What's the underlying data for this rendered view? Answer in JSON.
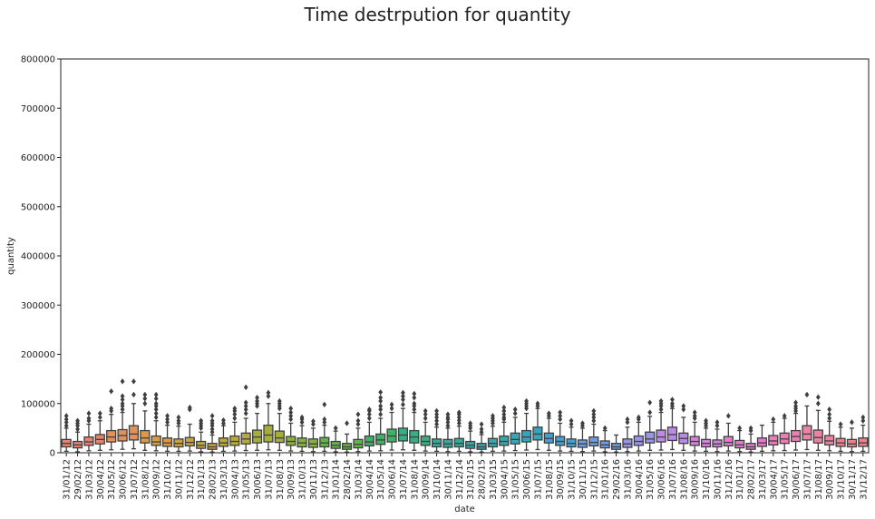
{
  "chart_data": {
    "type": "boxplot",
    "title": "Time destrpution for quantity",
    "xlabel": "date",
    "ylabel": "quantity",
    "ylim": [
      0,
      800000
    ],
    "yticks": [
      0,
      100000,
      200000,
      300000,
      400000,
      500000,
      600000,
      700000,
      800000
    ],
    "grid": false,
    "legend": "none",
    "categories": [
      "31/01/12",
      "29/02/12",
      "31/03/12",
      "30/04/12",
      "31/05/12",
      "30/06/12",
      "31/07/12",
      "31/08/12",
      "30/09/12",
      "31/10/12",
      "30/11/12",
      "31/12/12",
      "31/01/13",
      "28/02/13",
      "31/03/13",
      "30/04/13",
      "31/05/13",
      "30/06/13",
      "31/07/13",
      "31/08/13",
      "30/09/13",
      "31/10/13",
      "30/11/13",
      "31/12/13",
      "31/01/14",
      "28/02/14",
      "31/03/14",
      "30/04/14",
      "31/05/14",
      "30/06/14",
      "31/07/14",
      "31/08/14",
      "30/09/14",
      "31/10/14",
      "30/11/14",
      "31/12/14",
      "31/01/15",
      "28/02/15",
      "31/03/15",
      "30/04/15",
      "31/05/15",
      "30/06/15",
      "31/07/15",
      "31/08/15",
      "30/09/15",
      "31/10/15",
      "30/11/15",
      "31/12/15",
      "31/01/16",
      "29/02/16",
      "31/03/16",
      "30/04/16",
      "31/05/16",
      "30/06/16",
      "31/07/16",
      "31/08/16",
      "30/09/16",
      "31/10/16",
      "30/11/16",
      "31/12/16",
      "31/01/17",
      "28/02/17",
      "31/03/17",
      "30/04/17",
      "31/05/17",
      "30/06/17",
      "31/07/17",
      "31/08/17",
      "30/09/17",
      "31/10/17",
      "30/11/17",
      "31/12/17"
    ],
    "boxes": [
      {
        "q1": 12000,
        "median": 19000,
        "q3": 27000,
        "whisker_low": 3000,
        "whisker_high": 50000,
        "outliers": [
          55000,
          62000,
          68000,
          75000
        ]
      },
      {
        "q1": 10000,
        "median": 16000,
        "q3": 23000,
        "whisker_low": 2000,
        "whisker_high": 42000,
        "outliers": [
          48000,
          55000,
          60000,
          65000
        ]
      },
      {
        "q1": 15000,
        "median": 22000,
        "q3": 32000,
        "whisker_low": 4000,
        "whisker_high": 58000,
        "outliers": [
          65000,
          70000,
          80000
        ]
      },
      {
        "q1": 18000,
        "median": 27000,
        "q3": 37000,
        "whisker_low": 5000,
        "whisker_high": 65000,
        "outliers": [
          72000,
          80000
        ]
      },
      {
        "q1": 22000,
        "median": 32000,
        "q3": 45000,
        "whisker_low": 6000,
        "whisker_high": 78000,
        "outliers": [
          85000,
          90000,
          125000
        ]
      },
      {
        "q1": 24000,
        "median": 35000,
        "q3": 47000,
        "whisker_low": 7000,
        "whisker_high": 82000,
        "outliers": [
          88000,
          95000,
          100000,
          108000,
          115000,
          145000
        ]
      },
      {
        "q1": 26000,
        "median": 38000,
        "q3": 55000,
        "whisker_low": 8000,
        "whisker_high": 100000,
        "outliers": [
          118000,
          145000
        ]
      },
      {
        "q1": 20000,
        "median": 30000,
        "q3": 45000,
        "whisker_low": 5000,
        "whisker_high": 85000,
        "outliers": [
          100000,
          110000,
          118000
        ]
      },
      {
        "q1": 15000,
        "median": 22000,
        "q3": 34000,
        "whisker_low": 4000,
        "whisker_high": 65000,
        "outliers": [
          72000,
          80000,
          88000,
          95000,
          100000,
          110000,
          118000
        ]
      },
      {
        "q1": 13000,
        "median": 20000,
        "q3": 30000,
        "whisker_low": 3000,
        "whisker_high": 56000,
        "outliers": [
          62000,
          68000,
          75000
        ]
      },
      {
        "q1": 12000,
        "median": 19000,
        "q3": 28000,
        "whisker_low": 3000,
        "whisker_high": 54000,
        "outliers": [
          60000,
          65000,
          72000
        ]
      },
      {
        "q1": 14000,
        "median": 21000,
        "q3": 31000,
        "whisker_low": 3500,
        "whisker_high": 58000,
        "outliers": [
          88000,
          92000
        ]
      },
      {
        "q1": 9000,
        "median": 15000,
        "q3": 23000,
        "whisker_low": 2000,
        "whisker_high": 42000,
        "outliers": [
          50000,
          55000,
          60000,
          65000
        ]
      },
      {
        "q1": 7000,
        "median": 12000,
        "q3": 19000,
        "whisker_low": 1500,
        "whisker_high": 36000,
        "outliers": [
          42000,
          48000,
          55000,
          60000,
          65000,
          75000
        ]
      },
      {
        "q1": 13000,
        "median": 20000,
        "q3": 30000,
        "whisker_low": 3000,
        "whisker_high": 55000,
        "outliers": [
          60000,
          66000
        ]
      },
      {
        "q1": 15000,
        "median": 23000,
        "q3": 34000,
        "whisker_low": 3500,
        "whisker_high": 62000,
        "outliers": [
          70000,
          78000,
          85000,
          90000
        ]
      },
      {
        "q1": 18000,
        "median": 28000,
        "q3": 40000,
        "whisker_low": 4500,
        "whisker_high": 70000,
        "outliers": [
          80000,
          88000,
          95000,
          102000,
          133000
        ]
      },
      {
        "q1": 20000,
        "median": 32000,
        "q3": 46000,
        "whisker_low": 5000,
        "whisker_high": 80000,
        "outliers": [
          95000,
          100000,
          105000,
          112000
        ]
      },
      {
        "q1": 22000,
        "median": 36000,
        "q3": 56000,
        "whisker_low": 6000,
        "whisker_high": 100000,
        "outliers": [
          115000,
          122000
        ]
      },
      {
        "q1": 21000,
        "median": 30000,
        "q3": 44000,
        "whisker_low": 5000,
        "whisker_high": 80000,
        "outliers": [
          90000,
          95000,
          100000,
          105000
        ]
      },
      {
        "q1": 15000,
        "median": 23000,
        "q3": 33000,
        "whisker_low": 3500,
        "whisker_high": 60000,
        "outliers": [
          68000,
          75000,
          82000,
          90000
        ]
      },
      {
        "q1": 12000,
        "median": 20000,
        "q3": 30000,
        "whisker_low": 3000,
        "whisker_high": 55000,
        "outliers": [
          62000,
          68000,
          72000
        ]
      },
      {
        "q1": 11000,
        "median": 18000,
        "q3": 28000,
        "whisker_low": 2500,
        "whisker_high": 50000,
        "outliers": [
          58000,
          64000
        ]
      },
      {
        "q1": 12000,
        "median": 20000,
        "q3": 31000,
        "whisker_low": 3000,
        "whisker_high": 56000,
        "outliers": [
          62000,
          68000,
          98000
        ]
      },
      {
        "q1": 9000,
        "median": 15000,
        "q3": 23000,
        "whisker_low": 2000,
        "whisker_high": 44000,
        "outliers": [
          50000
        ]
      },
      {
        "q1": 7000,
        "median": 12000,
        "q3": 19000,
        "whisker_low": 1500,
        "whisker_high": 38000,
        "outliers": [
          60000
        ]
      },
      {
        "q1": 10000,
        "median": 17000,
        "q3": 27000,
        "whisker_low": 2500,
        "whisker_high": 50000,
        "outliers": [
          58000,
          65000,
          78000
        ]
      },
      {
        "q1": 14000,
        "median": 22000,
        "q3": 34000,
        "whisker_low": 3500,
        "whisker_high": 62000,
        "outliers": [
          70000,
          78000,
          85000,
          88000
        ]
      },
      {
        "q1": 17000,
        "median": 26000,
        "q3": 38000,
        "whisker_low": 4000,
        "whisker_high": 70000,
        "outliers": [
          78000,
          88000,
          95000,
          105000,
          112000,
          123000
        ]
      },
      {
        "q1": 22000,
        "median": 34000,
        "q3": 48000,
        "whisker_low": 5500,
        "whisker_high": 82000,
        "outliers": [
          90000,
          98000
        ]
      },
      {
        "q1": 24000,
        "median": 36000,
        "q3": 50000,
        "whisker_low": 6000,
        "whisker_high": 90000,
        "outliers": [
          98000,
          108000,
          115000,
          122000
        ]
      },
      {
        "q1": 20000,
        "median": 32000,
        "q3": 45000,
        "whisker_low": 5000,
        "whisker_high": 82000,
        "outliers": [
          88000,
          95000,
          100000,
          112000,
          120000
        ]
      },
      {
        "q1": 15000,
        "median": 23000,
        "q3": 34000,
        "whisker_low": 3500,
        "whisker_high": 62000,
        "outliers": [
          70000,
          78000,
          85000
        ]
      },
      {
        "q1": 12000,
        "median": 19000,
        "q3": 28000,
        "whisker_low": 3000,
        "whisker_high": 52000,
        "outliers": [
          58000,
          65000,
          72000,
          78000,
          85000
        ]
      },
      {
        "q1": 11000,
        "median": 18000,
        "q3": 27000,
        "whisker_low": 2500,
        "whisker_high": 50000,
        "outliers": [
          55000,
          62000,
          68000,
          72000,
          78000
        ]
      },
      {
        "q1": 12000,
        "median": 19000,
        "q3": 29000,
        "whisker_low": 3000,
        "whisker_high": 54000,
        "outliers": [
          60000,
          66000,
          72000,
          78000,
          82000
        ]
      },
      {
        "q1": 9000,
        "median": 15000,
        "q3": 23000,
        "whisker_low": 2000,
        "whisker_high": 44000,
        "outliers": [
          50000,
          55000,
          60000
        ]
      },
      {
        "q1": 7000,
        "median": 12000,
        "q3": 19000,
        "whisker_low": 1500,
        "whisker_high": 37000,
        "outliers": [
          42000,
          48000,
          58000
        ]
      },
      {
        "q1": 12000,
        "median": 19000,
        "q3": 29000,
        "whisker_low": 3000,
        "whisker_high": 54000,
        "outliers": [
          60000,
          65000,
          70000,
          75000
        ]
      },
      {
        "q1": 15000,
        "median": 23000,
        "q3": 34000,
        "whisker_low": 3500,
        "whisker_high": 62000,
        "outliers": [
          68000,
          72000,
          78000,
          85000,
          92000
        ]
      },
      {
        "q1": 18000,
        "median": 27000,
        "q3": 40000,
        "whisker_low": 4500,
        "whisker_high": 72000,
        "outliers": [
          80000,
          88000
        ]
      },
      {
        "q1": 22000,
        "median": 32000,
        "q3": 45000,
        "whisker_low": 5500,
        "whisker_high": 80000,
        "outliers": [
          90000,
          95000,
          100000,
          105000
        ]
      },
      {
        "q1": 26000,
        "median": 38000,
        "q3": 52000,
        "whisker_low": 6500,
        "whisker_high": 90000,
        "outliers": [
          95000,
          100000
        ]
      },
      {
        "q1": 20000,
        "median": 29000,
        "q3": 40000,
        "whisker_low": 5000,
        "whisker_high": 70000,
        "outliers": [
          75000,
          80000
        ]
      },
      {
        "q1": 15000,
        "median": 23000,
        "q3": 33000,
        "whisker_low": 3500,
        "whisker_high": 60000,
        "outliers": [
          68000,
          75000,
          82000
        ]
      },
      {
        "q1": 12000,
        "median": 19000,
        "q3": 28000,
        "whisker_low": 3000,
        "whisker_high": 52000,
        "outliers": [
          58000,
          65000
        ]
      },
      {
        "q1": 11000,
        "median": 18000,
        "q3": 26000,
        "whisker_low": 2500,
        "whisker_high": 50000,
        "outliers": [
          55000,
          60000
        ]
      },
      {
        "q1": 14000,
        "median": 21000,
        "q3": 32000,
        "whisker_low": 3500,
        "whisker_high": 58000,
        "outliers": [
          65000,
          72000,
          78000,
          85000
        ]
      },
      {
        "q1": 10000,
        "median": 16000,
        "q3": 24000,
        "whisker_low": 2000,
        "whisker_high": 45000,
        "outliers": [
          50000
        ]
      },
      {
        "q1": 7000,
        "median": 12000,
        "q3": 19000,
        "whisker_low": 1500,
        "whisker_high": 36000,
        "outliers": []
      },
      {
        "q1": 11000,
        "median": 18000,
        "q3": 28000,
        "whisker_low": 2500,
        "whisker_high": 52000,
        "outliers": [
          62000,
          68000
        ]
      },
      {
        "q1": 15000,
        "median": 23000,
        "q3": 34000,
        "whisker_low": 3500,
        "whisker_high": 62000,
        "outliers": [
          68000,
          72000
        ]
      },
      {
        "q1": 20000,
        "median": 28000,
        "q3": 42000,
        "whisker_low": 5000,
        "whisker_high": 74000,
        "outliers": [
          82000,
          102000
        ]
      },
      {
        "q1": 22000,
        "median": 32000,
        "q3": 46000,
        "whisker_low": 5500,
        "whisker_high": 82000,
        "outliers": [
          88000,
          95000,
          100000,
          105000
        ]
      },
      {
        "q1": 25000,
        "median": 37000,
        "q3": 52000,
        "whisker_low": 6500,
        "whisker_high": 90000,
        "outliers": [
          95000,
          100000,
          108000
        ]
      },
      {
        "q1": 19000,
        "median": 29000,
        "q3": 40000,
        "whisker_low": 5000,
        "whisker_high": 72000,
        "outliers": [
          88000,
          95000
        ]
      },
      {
        "q1": 15000,
        "median": 23000,
        "q3": 33000,
        "whisker_low": 3500,
        "whisker_high": 62000,
        "outliers": [
          70000,
          75000,
          82000
        ]
      },
      {
        "q1": 12000,
        "median": 19000,
        "q3": 27000,
        "whisker_low": 3000,
        "whisker_high": 50000,
        "outliers": [
          55000,
          60000,
          65000
        ]
      },
      {
        "q1": 12000,
        "median": 18000,
        "q3": 26000,
        "whisker_low": 2500,
        "whisker_high": 48000,
        "outliers": [
          55000,
          62000
        ]
      },
      {
        "q1": 14000,
        "median": 21000,
        "q3": 33000,
        "whisker_low": 3500,
        "whisker_high": 60000,
        "outliers": [
          75000
        ]
      },
      {
        "q1": 10000,
        "median": 16000,
        "q3": 25000,
        "whisker_low": 2500,
        "whisker_high": 45000,
        "outliers": [
          50000
        ]
      },
      {
        "q1": 7000,
        "median": 12000,
        "q3": 19000,
        "whisker_low": 1500,
        "whisker_high": 38000,
        "outliers": [
          45000,
          50000
        ]
      },
      {
        "q1": 13000,
        "median": 20000,
        "q3": 30000,
        "whisker_low": 3000,
        "whisker_high": 56000,
        "outliers": []
      },
      {
        "q1": 16000,
        "median": 24000,
        "q3": 35000,
        "whisker_low": 4000,
        "whisker_high": 62000,
        "outliers": [
          68000
        ]
      },
      {
        "q1": 19000,
        "median": 28000,
        "q3": 40000,
        "whisker_low": 4500,
        "whisker_high": 70000,
        "outliers": [
          75000
        ]
      },
      {
        "q1": 23000,
        "median": 33000,
        "q3": 45000,
        "whisker_low": 5500,
        "whisker_high": 80000,
        "outliers": [
          85000,
          90000,
          95000,
          102000
        ]
      },
      {
        "q1": 26000,
        "median": 38000,
        "q3": 55000,
        "whisker_low": 6500,
        "whisker_high": 95000,
        "outliers": [
          118000
        ]
      },
      {
        "q1": 20000,
        "median": 31000,
        "q3": 46000,
        "whisker_low": 5000,
        "whisker_high": 86000,
        "outliers": [
          100000,
          113000
        ]
      },
      {
        "q1": 16000,
        "median": 24000,
        "q3": 35000,
        "whisker_low": 4000,
        "whisker_high": 64000,
        "outliers": [
          70000,
          78000,
          88000
        ]
      },
      {
        "q1": 13000,
        "median": 20000,
        "q3": 29000,
        "whisker_low": 3000,
        "whisker_high": 52000,
        "outliers": [
          58000
        ]
      },
      {
        "q1": 12000,
        "median": 18000,
        "q3": 27000,
        "whisker_low": 2500,
        "whisker_high": 50000,
        "outliers": [
          62000
        ]
      },
      {
        "q1": 13000,
        "median": 20000,
        "q3": 30000,
        "whisker_low": 3000,
        "whisker_high": 56000,
        "outliers": [
          65000,
          72000
        ]
      }
    ],
    "palette": [
      "#e8826f",
      "#e3915c",
      "#d99b47",
      "#c9a341",
      "#b8a83e",
      "#a5ad3b",
      "#89b13d",
      "#5fb548",
      "#3fb266",
      "#38ad84",
      "#37a99a",
      "#37a6aa",
      "#3aa3ba",
      "#44a0cc",
      "#6e9cdf",
      "#9a94e6",
      "#ba8ae6",
      "#d281dc",
      "#e27bcc",
      "#ea7fb6",
      "#ec83a2",
      "#ec828e"
    ]
  }
}
